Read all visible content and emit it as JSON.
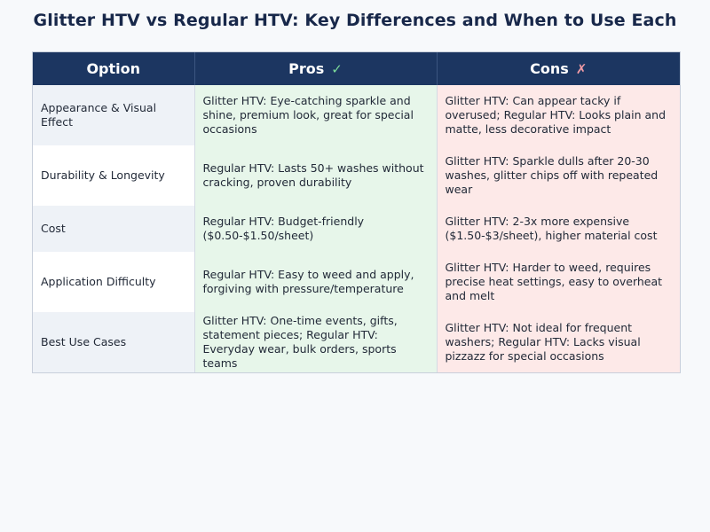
{
  "title": "Glitter HTV vs Regular HTV: Key Differences and When to Use Each",
  "table": {
    "headers": {
      "option": "Option",
      "pros": "Pros",
      "pros_icon": "✓",
      "cons": "Cons",
      "cons_icon": "✗"
    },
    "rows": [
      {
        "option": "Appearance & Visual Effect",
        "pros": "Glitter HTV: Eye-catching sparkle and shine, premium look, great for special occasions",
        "cons": "Glitter HTV: Can appear tacky if overused; Regular HTV: Looks plain and matte, less decorative impact"
      },
      {
        "option": "Durability & Longevity",
        "pros": "Regular HTV: Lasts 50+ washes without cracking, proven durability",
        "cons": "Glitter HTV: Sparkle dulls after 20-30 washes, glitter chips off with repeated wear"
      },
      {
        "option": "Cost",
        "pros": "Regular HTV: Budget-friendly ($0.50-$1.50/sheet)",
        "cons": "Glitter HTV: 2-3x more expensive ($1.50-$3/sheet), higher material cost"
      },
      {
        "option": "Application Difficulty",
        "pros": "Regular HTV: Easy to weed and apply, forgiving with pressure/temperature",
        "cons": "Glitter HTV: Harder to weed, requires precise heat settings, easy to overheat and melt"
      },
      {
        "option": "Best Use Cases",
        "pros": "Glitter HTV: One-time events, gifts, statement pieces; Regular HTV: Everyday wear, bulk orders, sports teams",
        "cons": "Glitter HTV: Not ideal for frequent washers; Regular HTV: Lacks visual pizzazz for special occasions"
      }
    ]
  }
}
